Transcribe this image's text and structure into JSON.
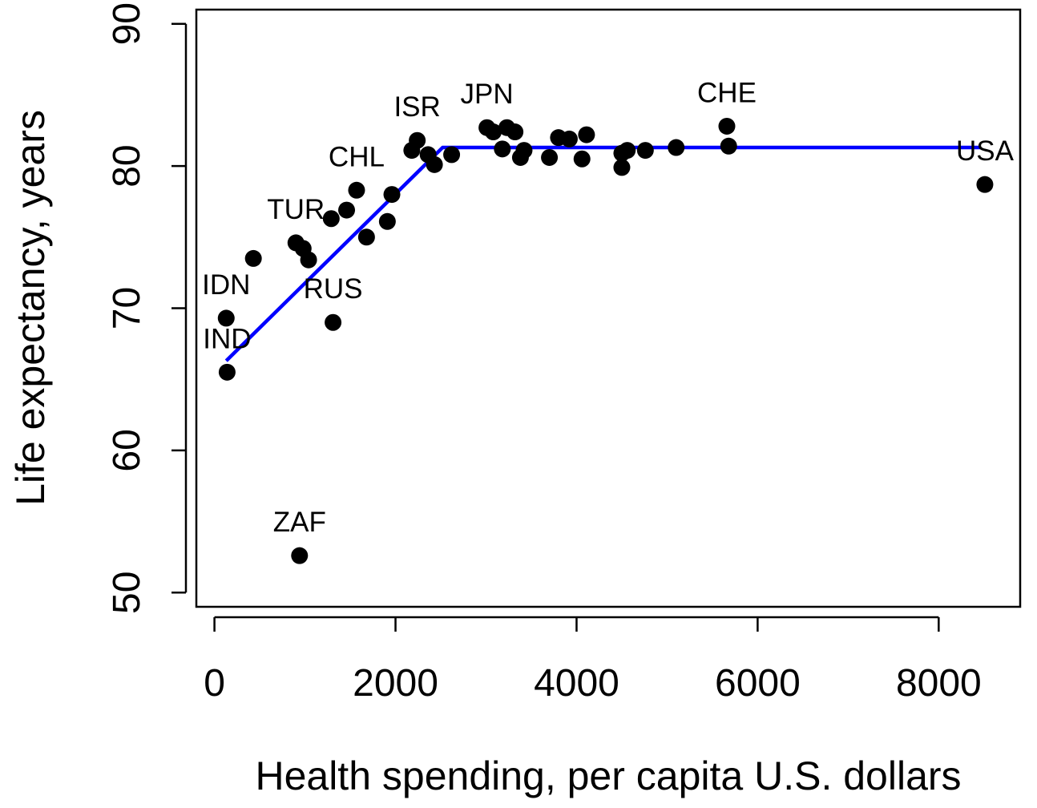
{
  "chart_data": {
    "type": "scatter",
    "title": "",
    "xlabel": "Health spending, per capita U.S. dollars",
    "ylabel": "Life expectancy, years",
    "xlim": [
      -200,
      8900
    ],
    "ylim": [
      49,
      91
    ],
    "xticks": [
      0,
      2000,
      4000,
      6000,
      8000
    ],
    "xtick_labels": [
      "0",
      "2000",
      "4000",
      "6000",
      "8000"
    ],
    "yticks": [
      50,
      60,
      70,
      80,
      90
    ],
    "ytick_labels": [
      "50",
      "60",
      "70",
      "80",
      "90"
    ],
    "grid": false,
    "points": [
      {
        "x": 130,
        "y": 69.3
      },
      {
        "x": 140,
        "y": 65.5
      },
      {
        "x": 430,
        "y": 73.5
      },
      {
        "x": 940,
        "y": 52.6
      },
      {
        "x": 900,
        "y": 74.6
      },
      {
        "x": 980,
        "y": 74.2
      },
      {
        "x": 1040,
        "y": 73.4
      },
      {
        "x": 1290,
        "y": 76.3
      },
      {
        "x": 1310,
        "y": 69.0
      },
      {
        "x": 1460,
        "y": 76.9
      },
      {
        "x": 1570,
        "y": 78.3
      },
      {
        "x": 1680,
        "y": 75.0
      },
      {
        "x": 1910,
        "y": 76.1
      },
      {
        "x": 1960,
        "y": 78.0
      },
      {
        "x": 2180,
        "y": 81.1
      },
      {
        "x": 2240,
        "y": 81.8
      },
      {
        "x": 2360,
        "y": 80.8
      },
      {
        "x": 2430,
        "y": 80.1
      },
      {
        "x": 2620,
        "y": 80.8
      },
      {
        "x": 3010,
        "y": 82.7
      },
      {
        "x": 3080,
        "y": 82.4
      },
      {
        "x": 3180,
        "y": 81.2
      },
      {
        "x": 3230,
        "y": 82.7
      },
      {
        "x": 3320,
        "y": 82.4
      },
      {
        "x": 3380,
        "y": 80.6
      },
      {
        "x": 3420,
        "y": 81.1
      },
      {
        "x": 3700,
        "y": 80.6
      },
      {
        "x": 3800,
        "y": 82.0
      },
      {
        "x": 3920,
        "y": 81.9
      },
      {
        "x": 4060,
        "y": 80.5
      },
      {
        "x": 4110,
        "y": 82.2
      },
      {
        "x": 4500,
        "y": 80.9
      },
      {
        "x": 4500,
        "y": 79.9
      },
      {
        "x": 4560,
        "y": 81.1
      },
      {
        "x": 4760,
        "y": 81.1
      },
      {
        "x": 5100,
        "y": 81.3
      },
      {
        "x": 5660,
        "y": 82.8
      },
      {
        "x": 5680,
        "y": 81.4
      },
      {
        "x": 8510,
        "y": 78.7
      }
    ],
    "point_labels": [
      {
        "text": "IDN",
        "x": 130,
        "y": 69.3
      },
      {
        "text": "IND",
        "x": 140,
        "y": 65.5
      },
      {
        "text": "TUR",
        "x": 900,
        "y": 74.6
      },
      {
        "text": "RUS",
        "x": 1310,
        "y": 69.0
      },
      {
        "text": "ZAF",
        "x": 940,
        "y": 52.6
      },
      {
        "text": "CHL",
        "x": 1570,
        "y": 78.3
      },
      {
        "text": "ISR",
        "x": 2240,
        "y": 81.8
      },
      {
        "text": "JPN",
        "x": 3010,
        "y": 82.7
      },
      {
        "text": "CHE",
        "x": 5660,
        "y": 82.8
      },
      {
        "text": "USA",
        "x": 8510,
        "y": 78.7
      }
    ],
    "fit_line": {
      "color": "#0000ff",
      "points": [
        {
          "x": 130,
          "y": 66.3
        },
        {
          "x": 2520,
          "y": 81.3
        },
        {
          "x": 8460,
          "y": 81.3
        }
      ]
    }
  }
}
